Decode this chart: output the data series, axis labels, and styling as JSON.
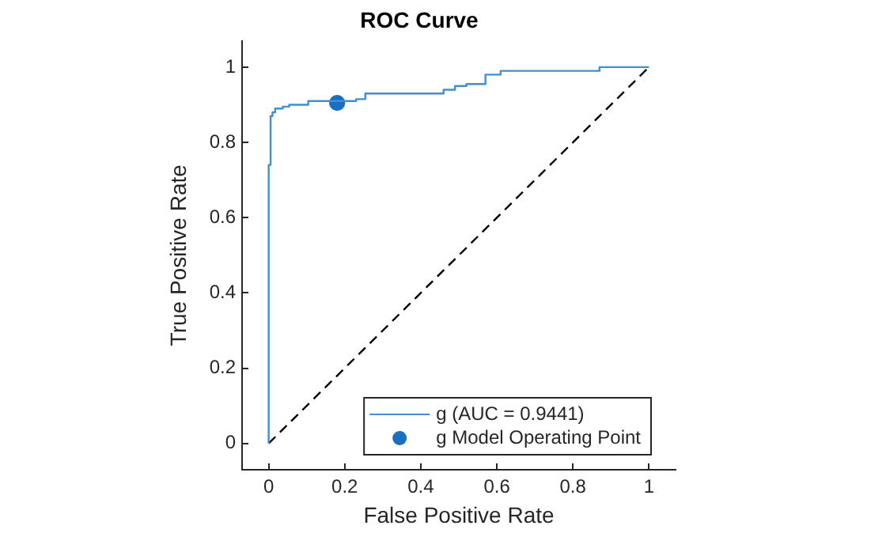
{
  "chart_data": {
    "type": "line",
    "title": "ROC Curve",
    "xlabel": "False Positive Rate",
    "ylabel": "True Positive Rate",
    "xlim": [
      -0.07,
      1.07
    ],
    "ylim": [
      -0.07,
      1.07
    ],
    "xticks": [
      0,
      0.2,
      0.4,
      0.6,
      0.8,
      1
    ],
    "yticks": [
      0,
      0.2,
      0.4,
      0.6,
      0.8,
      1
    ],
    "grid": false,
    "legend": "bottom right",
    "series": [
      {
        "name": "g (AUC = 0.9441)",
        "type": "step",
        "color": "#3f8fd6",
        "marker": "none",
        "x": [
          0,
          0,
          0.005,
          0.01,
          0.017,
          0.037,
          0.054,
          0.104,
          0.23,
          0.254,
          0.32,
          0.46,
          0.49,
          0.52,
          0.57,
          0.61,
          0.87,
          0.95,
          1
        ],
        "values": [
          0,
          0.32,
          0.74,
          0.87,
          0.88,
          0.89,
          0.895,
          0.9,
          0.91,
          0.915,
          0.93,
          0.93,
          0.94,
          0.95,
          0.955,
          0.98,
          0.99,
          1,
          1
        ]
      },
      {
        "type": "line",
        "color": "#000000",
        "line_style": "dashed",
        "marker": "none",
        "x": [
          0,
          1
        ],
        "values": [
          0,
          1
        ]
      },
      {
        "name": "g Model Operating Point",
        "type": "scatter",
        "color": "#1a6fc0",
        "marker": "circle",
        "x": [
          0.18
        ],
        "values": [
          0.905
        ]
      }
    ]
  }
}
